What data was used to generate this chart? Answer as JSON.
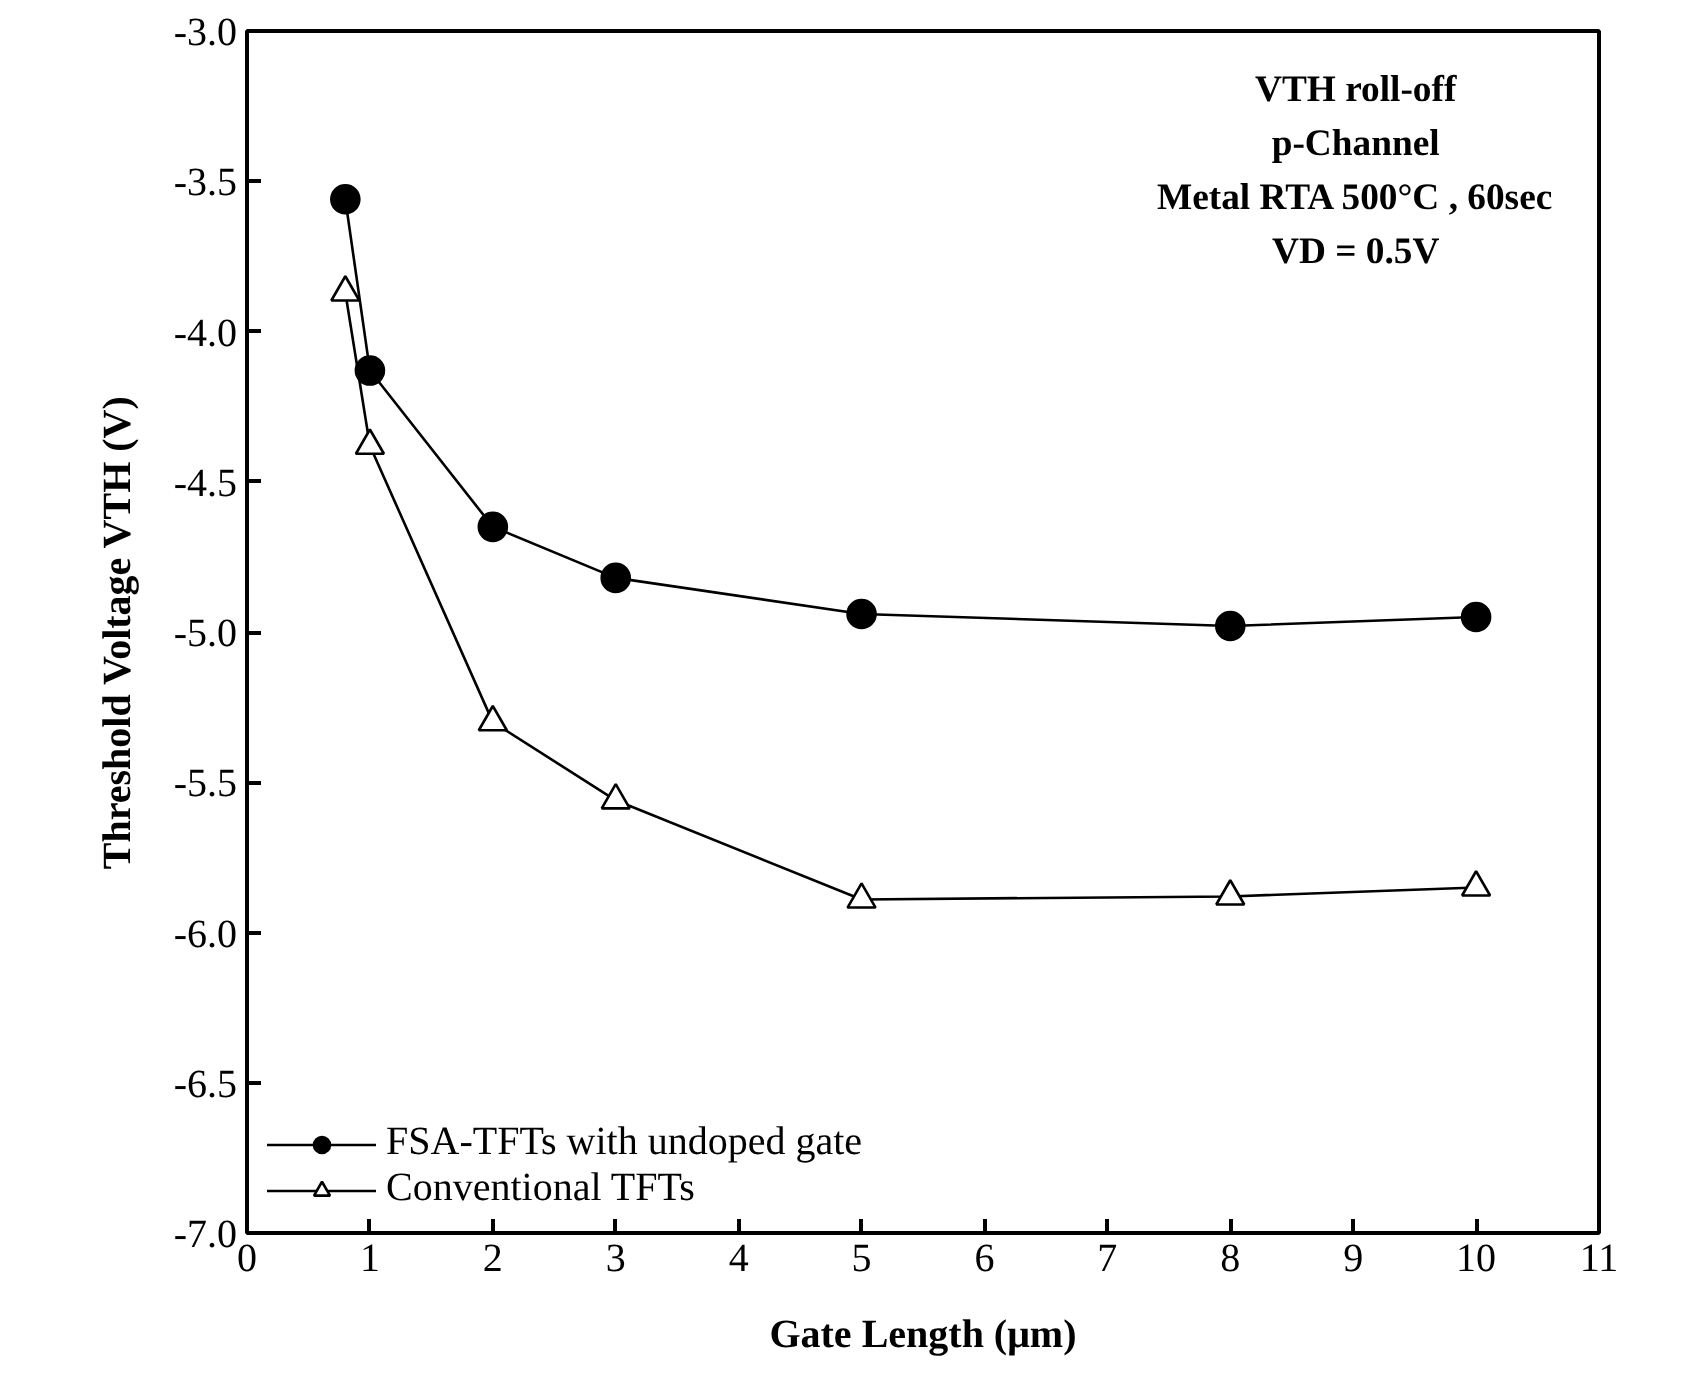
{
  "chart_data": {
    "type": "line",
    "xlabel": "Gate Length (μm)",
    "ylabel": "Threshold Voltage VTH (V)",
    "x": [
      0.8,
      1,
      2,
      3,
      5,
      8,
      10
    ],
    "series": [
      {
        "name": "FSA-TFTs with undoped gate",
        "color": "#000000",
        "marker": "circle",
        "values": [
          -3.56,
          -4.13,
          -4.65,
          -4.82,
          -4.94,
          -4.98,
          -4.95
        ]
      },
      {
        "name": "Conventional TFTs",
        "color": "#000000",
        "marker": "triangle",
        "values": [
          -3.87,
          -4.38,
          -5.3,
          -5.56,
          -5.89,
          -5.88,
          -5.85
        ]
      }
    ],
    "xlim": [
      0,
      11
    ],
    "xticks": [
      0,
      1,
      2,
      3,
      4,
      5,
      6,
      7,
      8,
      9,
      10,
      11
    ],
    "ylim": [
      -7.0,
      -3.0
    ],
    "yticks": [
      {
        "value": -7.0,
        "label": "-7.0"
      },
      {
        "value": -6.5,
        "label": "-6.5"
      },
      {
        "value": -6.0,
        "label": "-6.0"
      },
      {
        "value": -5.5,
        "label": "-5.5"
      },
      {
        "value": -5.0,
        "label": "-5.0"
      },
      {
        "value": -4.5,
        "label": "-4.5"
      },
      {
        "value": -4.0,
        "label": "-4.0"
      },
      {
        "value": -3.5,
        "label": "-3.5"
      },
      {
        "value": -3.0,
        "label": "-3.0"
      }
    ],
    "annotations": [
      "VTH roll-off",
      "p-Channel",
      "Metal RTA 500°C , 60sec",
      "VD = 0.5V"
    ],
    "grid": false,
    "legend": "bottom left",
    "line_style": "solid"
  }
}
